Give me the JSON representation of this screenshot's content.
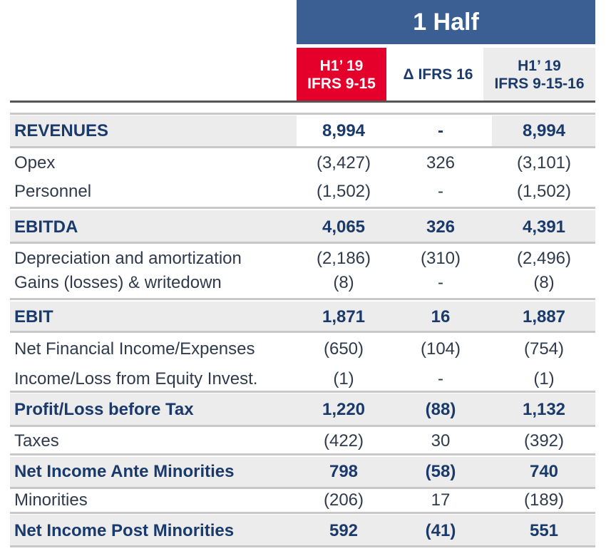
{
  "header": {
    "period": "1 Half",
    "col1": [
      "H1’ 19",
      "IFRS 9-15"
    ],
    "col2": "Δ IFRS 16",
    "col3": [
      "H1’ 19",
      "IFRS 9-15-16"
    ]
  },
  "rows": [
    {
      "label": "REVENUES",
      "bold": true,
      "v": [
        "8,994",
        "-",
        "8,994"
      ]
    },
    {
      "label": "Opex",
      "bold": false,
      "v": [
        "(3,427)",
        "326",
        "(3,101)"
      ]
    },
    {
      "label": "Personnel",
      "bold": false,
      "v": [
        "(1,502)",
        "-",
        "(1,502)"
      ]
    },
    {
      "label": "EBITDA",
      "bold": true,
      "v": [
        "4,065",
        "326",
        "4,391"
      ]
    },
    {
      "label": "Depreciation and amortization",
      "bold": false,
      "v": [
        "(2,186)",
        "(310)",
        "(2,496)"
      ]
    },
    {
      "label": "Gains (losses) & writedown",
      "bold": false,
      "v": [
        "(8)",
        "-",
        "(8)"
      ]
    },
    {
      "label": "EBIT",
      "bold": true,
      "v": [
        "1,871",
        "16",
        "1,887"
      ]
    },
    {
      "label": "Net Financial Income/Expenses",
      "bold": false,
      "v": [
        "(650)",
        "(104)",
        "(754)"
      ]
    },
    {
      "label": "Income/Loss from Equity Invest.",
      "bold": false,
      "v": [
        "(1)",
        "-",
        "(1)"
      ]
    },
    {
      "label": "Profit/Loss before Tax",
      "bold": true,
      "v": [
        "1,220",
        "(88)",
        "1,132"
      ]
    },
    {
      "label": "Taxes",
      "bold": false,
      "v": [
        "(422)",
        "30",
        "(392)"
      ]
    },
    {
      "label": "Net Income Ante Minorities",
      "bold": true,
      "v": [
        "798",
        "(58)",
        "740"
      ]
    },
    {
      "label": "Minorities",
      "bold": false,
      "v": [
        "(206)",
        "17",
        "(189)"
      ]
    },
    {
      "label": "Net Income Post Minorities",
      "bold": true,
      "v": [
        "592",
        "(41)",
        "551"
      ]
    }
  ],
  "colors": {
    "banner": "#3b5f93",
    "accent": "#e4002b",
    "band": "#ececec",
    "text": "#1a3a6b"
  }
}
